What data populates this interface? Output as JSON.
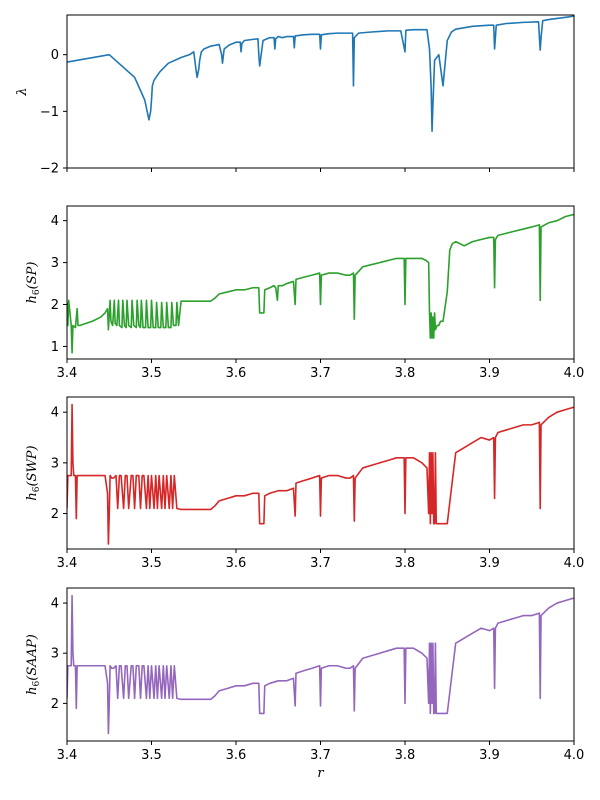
{
  "chart_data": [
    {
      "type": "line",
      "ylabel": "λ",
      "xlim": [
        3.4,
        4.0
      ],
      "ylim": [
        -2,
        0.7
      ],
      "xticks": [
        3.4,
        3.5,
        3.6,
        3.7,
        3.8,
        3.9,
        4.0
      ],
      "xtick_labels_visible": false,
      "yticks": [
        -2,
        -1,
        0
      ],
      "ytick_labels": [
        "−2",
        "−1",
        "0"
      ],
      "color": "#1f77b4",
      "x": [
        3.4,
        3.45,
        3.48,
        3.492,
        3.497,
        3.499,
        3.5,
        3.501,
        3.503,
        3.51,
        3.52,
        3.535,
        3.545,
        3.55,
        3.553,
        3.554,
        3.556,
        3.557,
        3.559,
        3.562,
        3.57,
        3.58,
        3.583,
        3.584,
        3.586,
        3.592,
        3.6,
        3.605,
        3.606,
        3.607,
        3.61,
        3.62,
        3.626,
        3.627,
        3.628,
        3.632,
        3.64,
        3.645,
        3.646,
        3.647,
        3.65,
        3.655,
        3.66,
        3.668,
        3.669,
        3.67,
        3.68,
        3.69,
        3.699,
        3.7,
        3.701,
        3.71,
        3.72,
        3.73,
        3.738,
        3.739,
        3.74,
        3.745,
        3.76,
        3.78,
        3.795,
        3.8,
        3.801,
        3.81,
        3.82,
        3.826,
        3.829,
        3.831,
        3.832,
        3.833,
        3.835,
        3.84,
        3.845,
        3.85,
        3.855,
        3.86,
        3.88,
        3.9,
        3.905,
        3.906,
        3.908,
        3.92,
        3.94,
        3.958,
        3.96,
        3.961,
        3.963,
        3.97,
        3.98,
        3.99,
        4.0
      ],
      "y": [
        -0.13,
        0.0,
        -0.4,
        -0.8,
        -1.15,
        -1.0,
        -0.8,
        -0.55,
        -0.45,
        -0.3,
        -0.15,
        -0.05,
        0.0,
        0.05,
        -0.3,
        -0.4,
        -0.25,
        -0.1,
        0.05,
        0.1,
        0.15,
        0.18,
        0.0,
        -0.15,
        0.1,
        0.17,
        0.22,
        0.22,
        0.05,
        0.2,
        0.25,
        0.27,
        0.28,
        0.0,
        -0.2,
        0.25,
        0.3,
        0.3,
        0.1,
        0.28,
        0.32,
        0.3,
        0.32,
        0.32,
        0.12,
        0.33,
        0.35,
        0.36,
        0.36,
        0.1,
        0.35,
        0.37,
        0.38,
        0.38,
        0.38,
        -0.55,
        0.3,
        0.38,
        0.4,
        0.42,
        0.42,
        0.05,
        0.43,
        0.44,
        0.44,
        0.44,
        0.1,
        -0.6,
        -1.35,
        -0.9,
        -0.1,
        0.0,
        -0.55,
        0.25,
        0.4,
        0.45,
        0.5,
        0.52,
        0.52,
        0.1,
        0.52,
        0.55,
        0.57,
        0.58,
        0.08,
        0.3,
        0.6,
        0.62,
        0.64,
        0.66,
        0.68
      ]
    },
    {
      "type": "line",
      "ylabel": "h_6(SP)",
      "xlim": [
        3.4,
        4.0
      ],
      "ylim": [
        0.7,
        4.35
      ],
      "xticks": [
        3.4,
        3.5,
        3.6,
        3.7,
        3.8,
        3.9,
        4.0
      ],
      "xtick_labels": [
        "3.4",
        "3.5",
        "3.6",
        "3.7",
        "3.8",
        "3.9",
        "4.0"
      ],
      "yticks": [
        1,
        2,
        3,
        4
      ],
      "ytick_labels": [
        "1",
        "2",
        "3",
        "4"
      ],
      "color": "#2ca02c",
      "x": [
        3.4,
        3.401,
        3.402,
        3.405,
        3.406,
        3.407,
        3.41,
        3.412,
        3.413,
        3.415,
        3.43,
        3.44,
        3.445,
        3.448,
        3.449,
        3.451,
        3.452,
        3.454,
        3.456,
        3.457,
        3.459,
        3.461,
        3.462,
        3.465,
        3.466,
        3.468,
        3.47,
        3.471,
        3.473,
        3.476,
        3.477,
        3.479,
        3.482,
        3.483,
        3.485,
        3.487,
        3.488,
        3.49,
        3.493,
        3.494,
        3.496,
        3.499,
        3.5,
        3.502,
        3.505,
        3.506,
        3.508,
        3.511,
        3.512,
        3.514,
        3.517,
        3.518,
        3.52,
        3.523,
        3.524,
        3.526,
        3.529,
        3.53,
        3.532,
        3.535,
        3.545,
        3.56,
        3.57,
        3.575,
        3.58,
        3.59,
        3.6,
        3.61,
        3.62,
        3.627,
        3.628,
        3.633,
        3.634,
        3.64,
        3.645,
        3.647,
        3.649,
        3.65,
        3.655,
        3.66,
        3.668,
        3.67,
        3.671,
        3.68,
        3.69,
        3.699,
        3.7,
        3.701,
        3.71,
        3.72,
        3.73,
        3.735,
        3.739,
        3.74,
        3.741,
        3.75,
        3.76,
        3.77,
        3.78,
        3.79,
        3.799,
        3.8,
        3.801,
        3.81,
        3.82,
        3.825,
        3.828,
        3.829,
        3.83,
        3.831,
        3.832,
        3.833,
        3.834,
        3.835,
        3.836,
        3.838,
        3.84,
        3.842,
        3.845,
        3.85,
        3.853,
        3.856,
        3.86,
        3.87,
        3.88,
        3.89,
        3.9,
        3.905,
        3.906,
        3.907,
        3.91,
        3.92,
        3.93,
        3.94,
        3.95,
        3.959,
        3.96,
        3.961,
        3.97,
        3.98,
        3.99,
        4.0
      ],
      "y": [
        2.05,
        1.5,
        2.1,
        1.5,
        0.85,
        1.5,
        1.45,
        1.9,
        1.5,
        1.5,
        1.6,
        1.7,
        1.8,
        1.9,
        1.4,
        2.1,
        1.6,
        1.5,
        2.1,
        1.55,
        1.5,
        2.1,
        1.5,
        1.45,
        2.1,
        1.5,
        1.45,
        2.1,
        1.5,
        1.45,
        2.1,
        1.5,
        1.45,
        2.1,
        1.5,
        1.45,
        2.1,
        1.45,
        1.45,
        2.1,
        1.45,
        1.45,
        2.1,
        1.45,
        1.45,
        2.05,
        1.45,
        1.45,
        2.05,
        1.45,
        1.45,
        2.05,
        1.45,
        1.45,
        2.05,
        1.5,
        1.5,
        2.05,
        1.5,
        2.08,
        2.08,
        2.08,
        2.08,
        2.15,
        2.25,
        2.3,
        2.35,
        2.35,
        2.4,
        2.4,
        1.8,
        1.8,
        2.35,
        2.4,
        2.45,
        2.4,
        2.1,
        2.45,
        2.45,
        2.5,
        2.55,
        2.0,
        2.6,
        2.65,
        2.7,
        2.75,
        2.0,
        2.7,
        2.75,
        2.75,
        2.7,
        2.7,
        2.75,
        1.65,
        2.7,
        2.9,
        2.95,
        3.0,
        3.05,
        3.1,
        3.1,
        2.0,
        3.1,
        3.1,
        3.1,
        3.05,
        3.0,
        1.8,
        1.2,
        1.8,
        1.2,
        1.7,
        1.2,
        1.8,
        1.4,
        1.5,
        1.5,
        1.6,
        1.6,
        2.3,
        3.3,
        3.45,
        3.5,
        3.4,
        3.5,
        3.55,
        3.6,
        3.6,
        2.4,
        3.55,
        3.65,
        3.7,
        3.75,
        3.8,
        3.85,
        3.9,
        2.1,
        3.85,
        3.95,
        4.0,
        4.1,
        4.15
      ]
    },
    {
      "type": "line",
      "ylabel": "h_6(SWP)",
      "xlim": [
        3.4,
        4.0
      ],
      "ylim": [
        1.3,
        4.3
      ],
      "xticks": [
        3.4,
        3.5,
        3.6,
        3.7,
        3.8,
        3.9,
        4.0
      ],
      "xtick_labels": [
        "3.4",
        "3.5",
        "3.6",
        "3.7",
        "3.8",
        "3.9",
        "4.0"
      ],
      "yticks": [
        2,
        3,
        4
      ],
      "ytick_labels": [
        "2",
        "3",
        "4"
      ],
      "color": "#d62728",
      "x": [
        3.4,
        3.401,
        3.403,
        3.405,
        3.406,
        3.407,
        3.408,
        3.41,
        3.411,
        3.412,
        3.413,
        3.415,
        3.43,
        3.445,
        3.448,
        3.449,
        3.45,
        3.451,
        3.453,
        3.455,
        3.458,
        3.46,
        3.462,
        3.464,
        3.467,
        3.469,
        3.471,
        3.473,
        3.476,
        3.478,
        3.48,
        3.482,
        3.485,
        3.487,
        3.489,
        3.491,
        3.494,
        3.496,
        3.498,
        3.5,
        3.503,
        3.505,
        3.507,
        3.509,
        3.512,
        3.514,
        3.516,
        3.518,
        3.521,
        3.523,
        3.525,
        3.527,
        3.53,
        3.535,
        3.55,
        3.57,
        3.575,
        3.58,
        3.59,
        3.6,
        3.61,
        3.62,
        3.627,
        3.628,
        3.633,
        3.634,
        3.64,
        3.65,
        3.66,
        3.668,
        3.67,
        3.671,
        3.68,
        3.69,
        3.699,
        3.7,
        3.701,
        3.71,
        3.72,
        3.73,
        3.735,
        3.739,
        3.74,
        3.741,
        3.75,
        3.76,
        3.77,
        3.78,
        3.79,
        3.799,
        3.8,
        3.801,
        3.81,
        3.82,
        3.826,
        3.828,
        3.829,
        3.83,
        3.831,
        3.832,
        3.833,
        3.834,
        3.835,
        3.836,
        3.837,
        3.84,
        3.845,
        3.85,
        3.855,
        3.86,
        3.87,
        3.88,
        3.89,
        3.9,
        3.905,
        3.906,
        3.907,
        3.91,
        3.92,
        3.93,
        3.94,
        3.95,
        3.959,
        3.96,
        3.961,
        3.97,
        3.98,
        3.99,
        4.0
      ],
      "y": [
        2.1,
        2.75,
        2.75,
        2.75,
        4.15,
        3.0,
        2.75,
        2.75,
        1.9,
        2.75,
        2.75,
        2.75,
        2.75,
        2.75,
        2.4,
        1.4,
        2.0,
        2.75,
        2.7,
        2.7,
        2.75,
        2.1,
        2.75,
        2.75,
        2.1,
        2.75,
        2.75,
        2.1,
        2.75,
        2.75,
        2.1,
        2.75,
        2.75,
        2.1,
        2.75,
        2.75,
        2.1,
        2.75,
        2.1,
        2.75,
        2.1,
        2.75,
        2.1,
        2.75,
        2.1,
        2.75,
        2.1,
        2.75,
        2.1,
        2.75,
        2.1,
        2.75,
        2.1,
        2.08,
        2.08,
        2.08,
        2.15,
        2.25,
        2.3,
        2.35,
        2.35,
        2.4,
        2.4,
        1.8,
        1.8,
        2.35,
        2.4,
        2.45,
        2.45,
        2.5,
        1.95,
        2.6,
        2.65,
        2.7,
        2.75,
        1.95,
        2.7,
        2.75,
        2.75,
        2.7,
        2.7,
        2.75,
        1.85,
        2.7,
        2.9,
        2.95,
        3.0,
        3.05,
        3.1,
        3.1,
        2.0,
        3.1,
        3.1,
        3.0,
        2.9,
        2.0,
        3.2,
        1.8,
        3.2,
        2.0,
        3.2,
        1.8,
        1.8,
        3.2,
        1.8,
        1.8,
        1.8,
        1.8,
        2.5,
        3.2,
        3.3,
        3.4,
        3.5,
        3.45,
        3.5,
        2.3,
        3.5,
        3.6,
        3.65,
        3.7,
        3.75,
        3.75,
        3.8,
        2.1,
        3.75,
        3.9,
        4.0,
        4.05,
        4.1
      ]
    },
    {
      "type": "line",
      "ylabel": "h_6(SAAP)",
      "xlabel": "r",
      "xlim": [
        3.4,
        4.0
      ],
      "ylim": [
        1.25,
        4.3
      ],
      "xticks": [
        3.4,
        3.5,
        3.6,
        3.7,
        3.8,
        3.9,
        4.0
      ],
      "xtick_labels": [
        "3.4",
        "3.5",
        "3.6",
        "3.7",
        "3.8",
        "3.9",
        "4.0"
      ],
      "yticks": [
        2,
        3,
        4
      ],
      "ytick_labels": [
        "2",
        "3",
        "4"
      ],
      "color": "#9467bd",
      "x": [
        3.4,
        3.401,
        3.403,
        3.405,
        3.406,
        3.407,
        3.408,
        3.41,
        3.411,
        3.412,
        3.413,
        3.415,
        3.43,
        3.445,
        3.448,
        3.449,
        3.45,
        3.451,
        3.453,
        3.455,
        3.458,
        3.46,
        3.462,
        3.464,
        3.467,
        3.469,
        3.471,
        3.473,
        3.476,
        3.478,
        3.48,
        3.482,
        3.485,
        3.487,
        3.489,
        3.491,
        3.494,
        3.496,
        3.498,
        3.5,
        3.503,
        3.505,
        3.507,
        3.509,
        3.512,
        3.514,
        3.516,
        3.518,
        3.521,
        3.523,
        3.525,
        3.527,
        3.53,
        3.535,
        3.55,
        3.57,
        3.575,
        3.58,
        3.59,
        3.6,
        3.61,
        3.62,
        3.627,
        3.628,
        3.633,
        3.634,
        3.64,
        3.65,
        3.66,
        3.668,
        3.67,
        3.671,
        3.68,
        3.69,
        3.699,
        3.7,
        3.701,
        3.71,
        3.72,
        3.73,
        3.735,
        3.739,
        3.74,
        3.741,
        3.75,
        3.76,
        3.77,
        3.78,
        3.79,
        3.799,
        3.8,
        3.801,
        3.81,
        3.82,
        3.826,
        3.828,
        3.829,
        3.83,
        3.831,
        3.832,
        3.833,
        3.834,
        3.835,
        3.836,
        3.837,
        3.84,
        3.845,
        3.85,
        3.855,
        3.86,
        3.87,
        3.88,
        3.89,
        3.9,
        3.905,
        3.906,
        3.907,
        3.91,
        3.92,
        3.93,
        3.94,
        3.95,
        3.959,
        3.96,
        3.961,
        3.97,
        3.98,
        3.99,
        4.0
      ],
      "y": [
        2.1,
        2.75,
        2.75,
        2.75,
        4.15,
        3.0,
        2.75,
        2.75,
        1.9,
        2.75,
        2.75,
        2.75,
        2.75,
        2.75,
        2.4,
        1.4,
        2.0,
        2.75,
        2.7,
        2.7,
        2.75,
        2.1,
        2.75,
        2.75,
        2.1,
        2.75,
        2.75,
        2.1,
        2.75,
        2.75,
        2.1,
        2.75,
        2.75,
        2.1,
        2.75,
        2.75,
        2.1,
        2.75,
        2.1,
        2.75,
        2.1,
        2.75,
        2.1,
        2.75,
        2.1,
        2.75,
        2.1,
        2.75,
        2.1,
        2.75,
        2.1,
        2.75,
        2.1,
        2.08,
        2.08,
        2.08,
        2.15,
        2.25,
        2.3,
        2.35,
        2.35,
        2.4,
        2.4,
        1.8,
        1.8,
        2.35,
        2.4,
        2.45,
        2.45,
        2.5,
        1.95,
        2.6,
        2.65,
        2.7,
        2.75,
        1.95,
        2.7,
        2.75,
        2.75,
        2.7,
        2.7,
        2.75,
        1.85,
        2.7,
        2.9,
        2.95,
        3.0,
        3.05,
        3.1,
        3.1,
        2.0,
        3.1,
        3.1,
        3.0,
        2.9,
        2.0,
        3.2,
        1.8,
        3.2,
        2.0,
        3.2,
        1.8,
        1.8,
        3.2,
        1.8,
        1.8,
        1.8,
        1.8,
        2.5,
        3.2,
        3.3,
        3.4,
        3.5,
        3.45,
        3.5,
        2.3,
        3.5,
        3.6,
        3.65,
        3.7,
        3.75,
        3.75,
        3.8,
        2.1,
        3.75,
        3.9,
        4.0,
        4.05,
        4.1
      ]
    }
  ]
}
